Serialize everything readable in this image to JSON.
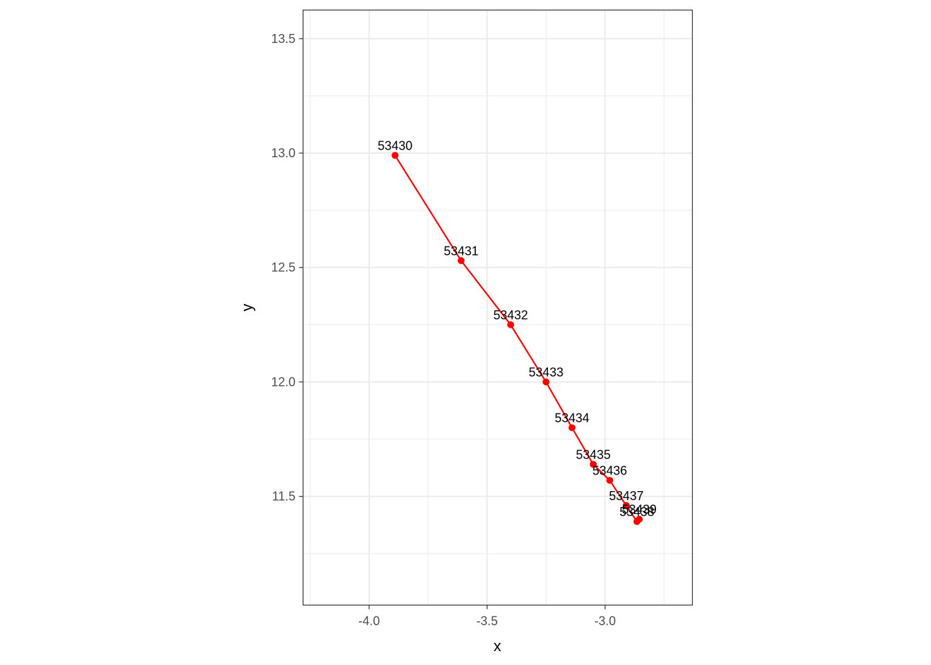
{
  "chart_data": {
    "type": "line",
    "xlabel": "x",
    "ylabel": "y",
    "xlim": [
      -4.28,
      -2.63
    ],
    "ylim": [
      11.025,
      13.625
    ],
    "x_ticks": [
      -4.0,
      -3.5,
      -3.0
    ],
    "x_tick_labels": [
      "-4.0",
      "-3.5",
      "-3.0"
    ],
    "x_minor_ticks": [
      -4.25,
      -3.75,
      -3.25,
      -2.75
    ],
    "y_ticks": [
      11.5,
      12.0,
      12.5,
      13.0,
      13.5
    ],
    "y_tick_labels": [
      "11.5",
      "12.0",
      "12.5",
      "13.0",
      "13.5"
    ],
    "y_minor_ticks": [
      11.25,
      11.75,
      12.25,
      12.75,
      13.25
    ],
    "grid": true,
    "theme": "bw",
    "series": [
      {
        "color": "#ff0000",
        "points": [
          {
            "label": "53430",
            "x": -3.89,
            "y": 12.99
          },
          {
            "label": "53431",
            "x": -3.61,
            "y": 12.53
          },
          {
            "label": "53432",
            "x": -3.4,
            "y": 12.25
          },
          {
            "label": "53433",
            "x": -3.25,
            "y": 12.0
          },
          {
            "label": "53434",
            "x": -3.14,
            "y": 11.8
          },
          {
            "label": "53435",
            "x": -3.05,
            "y": 11.64
          },
          {
            "label": "53436",
            "x": -2.98,
            "y": 11.57
          },
          {
            "label": "53437",
            "x": -2.91,
            "y": 11.46
          },
          {
            "label": "53438",
            "x": -2.865,
            "y": 11.39
          },
          {
            "label": "53439",
            "x": -2.855,
            "y": 11.4
          }
        ]
      }
    ]
  }
}
